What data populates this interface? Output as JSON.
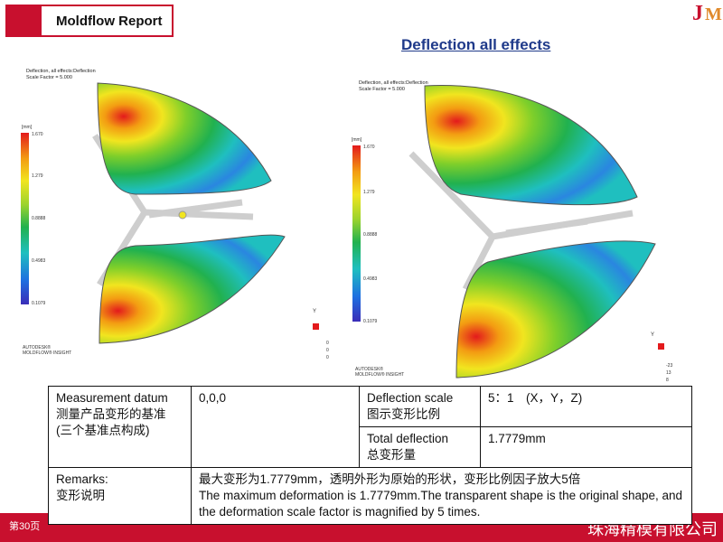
{
  "header": {
    "title": "Moldflow Report",
    "logo_text": "JM"
  },
  "subtitle": "Deflection all effects",
  "plots": [
    {
      "caption_line1": "Deflection, all effects:Deflection",
      "caption_line2": "Scale Factor = 5.000",
      "legend_unit": "[mm]",
      "legend_ticks": [
        "1.670",
        "1.279",
        "0.8888",
        "0.4983",
        "0.1079"
      ],
      "brand_line1": "AUTODESK®",
      "brand_line2": "MOLDFLOW® INSIGHT",
      "axis_label": "Y",
      "axis_values": [
        "0",
        "0",
        "0"
      ]
    },
    {
      "caption_line1": "Deflection, all effects:Deflection",
      "caption_line2": "Scale Factor = 5.000",
      "legend_unit": "[mm]",
      "legend_ticks": [
        "1.670",
        "1.279",
        "0.8888",
        "0.4983",
        "0.1079"
      ],
      "brand_line1": "AUTODESK®",
      "brand_line2": "MOLDFLOW® INSIGHT",
      "axis_label": "Y",
      "axis_values": [
        "-23",
        "13",
        "8"
      ]
    }
  ],
  "table": {
    "datum_label_en": "Measurement datum",
    "datum_label_cn1": "测量产品变形的基准",
    "datum_label_cn2": "(三个基准点构成)",
    "datum_value": "0,0,0",
    "scale_label_en": "Deflection scale",
    "scale_label_cn": "图示变形比例",
    "scale_value": "5：1　(X，Y，Z)",
    "total_label_en": "Total deflection",
    "total_label_cn": "总变形量",
    "total_value": "1.7779mm",
    "remarks_label_en": "Remarks:",
    "remarks_label_cn": "变形说明",
    "remarks_cn": "最大变形为1.7779mm，透明外形为原始的形状，变形比例因子放大5倍",
    "remarks_en": "The maximum deformation is 1.7779mm.The transparent shape is the original shape, and the deformation scale factor is magnified by 5 times."
  },
  "footer": {
    "page": "第30页",
    "company": "珠海精模有限公司"
  },
  "colors": {
    "brand_red": "#c8102e",
    "title_blue": "#1f3a8a",
    "logo_orange": "#e08a2c"
  }
}
